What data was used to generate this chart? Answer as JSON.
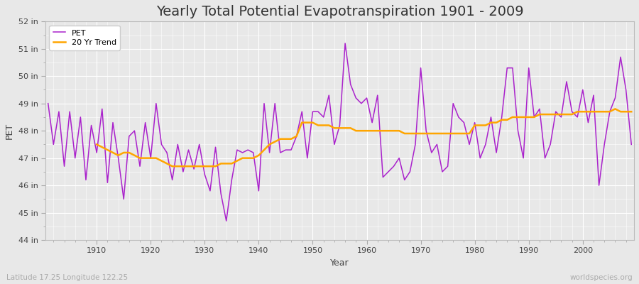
{
  "title": "Yearly Total Potential Evapotranspiration 1901 - 2009",
  "xlabel": "Year",
  "ylabel": "PET",
  "subtitle_left": "Latitude 17.25 Longitude 122.25",
  "subtitle_right": "worldspecies.org",
  "years": [
    1901,
    1902,
    1903,
    1904,
    1905,
    1906,
    1907,
    1908,
    1909,
    1910,
    1911,
    1912,
    1913,
    1914,
    1915,
    1916,
    1917,
    1918,
    1919,
    1920,
    1921,
    1922,
    1923,
    1924,
    1925,
    1926,
    1927,
    1928,
    1929,
    1930,
    1931,
    1932,
    1933,
    1934,
    1935,
    1936,
    1937,
    1938,
    1939,
    1940,
    1941,
    1942,
    1943,
    1944,
    1945,
    1946,
    1947,
    1948,
    1949,
    1950,
    1951,
    1952,
    1953,
    1954,
    1955,
    1956,
    1957,
    1958,
    1959,
    1960,
    1961,
    1962,
    1963,
    1964,
    1965,
    1966,
    1967,
    1968,
    1969,
    1970,
    1971,
    1972,
    1973,
    1974,
    1975,
    1976,
    1977,
    1978,
    1979,
    1980,
    1981,
    1982,
    1983,
    1984,
    1985,
    1986,
    1987,
    1988,
    1989,
    1990,
    1991,
    1992,
    1993,
    1994,
    1995,
    1996,
    1997,
    1998,
    1999,
    2000,
    2001,
    2002,
    2003,
    2004,
    2005,
    2006,
    2007,
    2008,
    2009
  ],
  "pet": [
    49.0,
    47.5,
    48.7,
    46.7,
    48.7,
    47.0,
    48.5,
    46.2,
    48.2,
    47.2,
    48.8,
    46.1,
    48.3,
    47.0,
    45.5,
    47.8,
    48.0,
    46.7,
    48.3,
    47.0,
    49.0,
    47.5,
    47.2,
    46.2,
    47.5,
    46.5,
    47.3,
    46.6,
    47.5,
    46.4,
    45.8,
    47.4,
    45.7,
    44.7,
    46.2,
    47.3,
    47.2,
    47.3,
    47.2,
    45.8,
    49.0,
    47.2,
    49.0,
    47.2,
    47.3,
    47.3,
    47.8,
    48.7,
    47.0,
    48.7,
    48.7,
    48.5,
    49.3,
    47.5,
    48.2,
    51.2,
    49.7,
    49.2,
    49.0,
    49.2,
    48.3,
    49.3,
    46.3,
    46.5,
    46.7,
    47.0,
    46.2,
    46.5,
    47.5,
    50.3,
    48.0,
    47.2,
    47.5,
    46.5,
    46.7,
    49.0,
    48.5,
    48.3,
    47.5,
    48.3,
    47.0,
    47.5,
    48.5,
    47.2,
    48.5,
    50.3,
    50.3,
    48.0,
    47.0,
    50.3,
    48.5,
    48.8,
    47.0,
    47.5,
    48.7,
    48.5,
    49.8,
    48.7,
    48.5,
    49.5,
    48.3,
    49.3,
    46.0,
    47.5,
    48.7,
    49.2,
    50.7,
    49.5,
    47.5
  ],
  "trend_years": [
    1910,
    1911,
    1912,
    1913,
    1914,
    1915,
    1916,
    1917,
    1918,
    1919,
    1920,
    1921,
    1922,
    1923,
    1924,
    1925,
    1926,
    1927,
    1928,
    1929,
    1930,
    1931,
    1932,
    1933,
    1934,
    1935,
    1936,
    1937,
    1938,
    1939,
    1940,
    1941,
    1942,
    1943,
    1944,
    1945,
    1946,
    1947,
    1948,
    1949,
    1950,
    1951,
    1952,
    1953,
    1954,
    1955,
    1956,
    1957,
    1958,
    1959,
    1960,
    1961,
    1962,
    1963,
    1964,
    1965,
    1966,
    1967,
    1968,
    1969,
    1970,
    1971,
    1972,
    1973,
    1974,
    1975,
    1976,
    1977,
    1978,
    1979,
    1980,
    1981,
    1982,
    1983,
    1984,
    1985,
    1986,
    1987,
    1988,
    1989,
    1990,
    1991,
    1992,
    1993,
    1994,
    1995,
    1996,
    1997,
    1998,
    1999,
    2000,
    2001,
    2002,
    2003,
    2004,
    2005,
    2006,
    2007,
    2008,
    2009
  ],
  "trend": [
    47.5,
    47.4,
    47.3,
    47.2,
    47.1,
    47.2,
    47.2,
    47.1,
    47.0,
    47.0,
    47.0,
    47.0,
    46.9,
    46.8,
    46.7,
    46.7,
    46.7,
    46.7,
    46.7,
    46.7,
    46.7,
    46.7,
    46.7,
    46.8,
    46.8,
    46.8,
    46.9,
    47.0,
    47.0,
    47.0,
    47.1,
    47.3,
    47.5,
    47.6,
    47.7,
    47.7,
    47.7,
    47.8,
    48.3,
    48.3,
    48.3,
    48.2,
    48.2,
    48.2,
    48.1,
    48.1,
    48.1,
    48.1,
    48.0,
    48.0,
    48.0,
    48.0,
    48.0,
    48.0,
    48.0,
    48.0,
    48.0,
    47.9,
    47.9,
    47.9,
    47.9,
    47.9,
    47.9,
    47.9,
    47.9,
    47.9,
    47.9,
    47.9,
    47.9,
    47.9,
    48.2,
    48.2,
    48.2,
    48.3,
    48.3,
    48.4,
    48.4,
    48.5,
    48.5,
    48.5,
    48.5,
    48.5,
    48.6,
    48.6,
    48.6,
    48.6,
    48.6,
    48.6,
    48.6,
    48.7,
    48.7,
    48.7,
    48.7,
    48.7,
    48.7,
    48.7,
    48.8,
    48.7,
    48.7,
    48.7
  ],
  "pet_color": "#AA22CC",
  "trend_color": "#FFA500",
  "bg_outer": "#E8E8E8",
  "bg_plot": "#E8E8E8",
  "grid_major_color": "#FFFFFF",
  "grid_minor_color": "#FFFFFF",
  "ylim": [
    44,
    52
  ],
  "yticks": [
    44,
    45,
    46,
    47,
    48,
    49,
    50,
    51,
    52
  ],
  "ytick_labels": [
    "44 in",
    "45 in",
    "46 in",
    "47 in",
    "48 in",
    "49 in",
    "50 in",
    "51 in",
    "52 in"
  ],
  "legend_pet": "PET",
  "legend_trend": "20 Yr Trend",
  "title_fontsize": 14,
  "axis_label_fontsize": 9,
  "tick_fontsize": 8,
  "legend_fontsize": 8,
  "subtitle_fontsize": 7.5
}
